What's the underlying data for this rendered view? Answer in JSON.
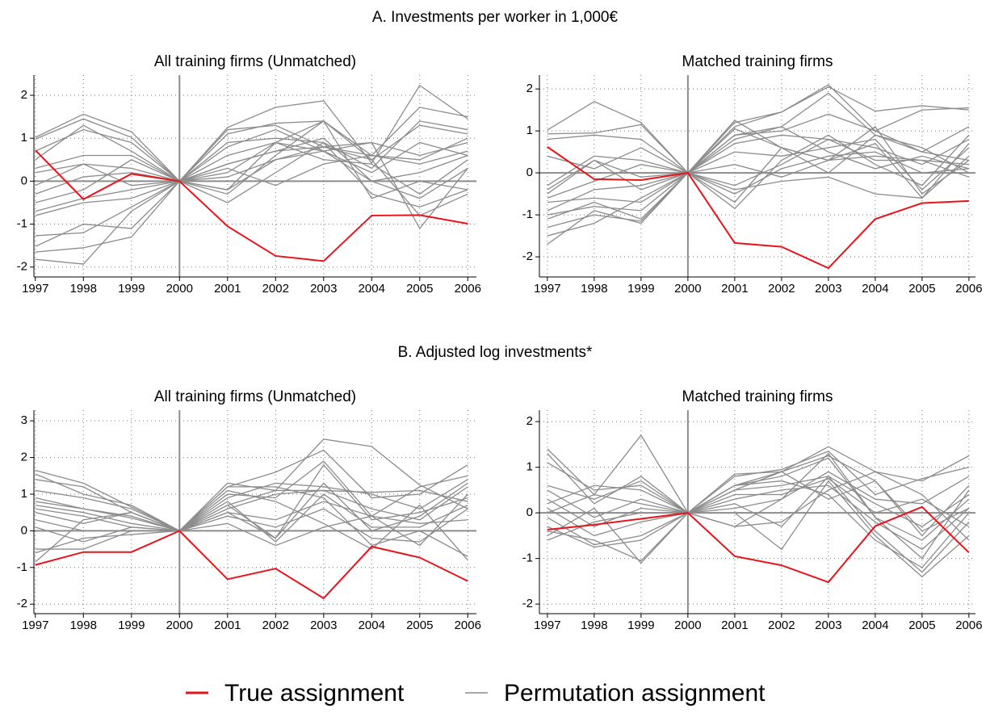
{
  "sections": [
    {
      "title": "A. Investments per worker in 1,000€"
    },
    {
      "title": "B. Adjusted log investments*"
    }
  ],
  "legend": [
    {
      "name": "True assignment",
      "color": "#e8141c"
    },
    {
      "name": "Permutation assignment",
      "color": "#8c8c8c"
    }
  ],
  "chart_data": [
    {
      "type": "line",
      "title": "All training firms (Unmatched)",
      "x": [
        1997,
        1998,
        1999,
        2000,
        2001,
        2002,
        2003,
        2004,
        2005,
        2006
      ],
      "xlim": [
        1996.97,
        2006.18
      ],
      "ylim": [
        -2.23,
        2.47
      ],
      "yticks": [
        -2,
        -1,
        0,
        1,
        2
      ],
      "grid": true,
      "series": [
        {
          "color": "#e8141c",
          "values": [
            0.72,
            -0.42,
            0.17,
            0,
            -1.05,
            -1.74,
            -1.86,
            -0.8,
            -0.79,
            -0.99
          ]
        },
        {
          "color": "#8c8c8c",
          "values": [
            1.02,
            1.56,
            1.15,
            0,
            1.25,
            1.72,
            1.87,
            0.42,
            2.23,
            1.45
          ]
        },
        {
          "color": "#8c8c8c",
          "values": [
            0.98,
            1.45,
            1.02,
            0,
            1.1,
            1.35,
            1.4,
            0.6,
            1.72,
            1.5
          ]
        },
        {
          "color": "#8c8c8c",
          "values": [
            0.5,
            1.3,
            0.7,
            0,
            0.9,
            1.0,
            0.9,
            0.3,
            1.4,
            1.2
          ]
        },
        {
          "color": "#8c8c8c",
          "values": [
            0.3,
            0.6,
            0.6,
            0,
            0.6,
            0.9,
            1.4,
            0.5,
            1.3,
            1.1
          ]
        },
        {
          "color": "#8c8c8c",
          "values": [
            0.2,
            0.4,
            0.3,
            0,
            0.4,
            0.7,
            0.8,
            0.9,
            0.6,
            0.9
          ]
        },
        {
          "color": "#8c8c8c",
          "values": [
            -0.1,
            0.4,
            -0.1,
            0,
            0.2,
            0.9,
            0.7,
            0.2,
            0.9,
            0.6
          ]
        },
        {
          "color": "#8c8c8c",
          "values": [
            -0.3,
            0.1,
            0.2,
            0,
            0.1,
            0.5,
            0.8,
            0.6,
            0.4,
            0.7
          ]
        },
        {
          "color": "#8c8c8c",
          "values": [
            -0.5,
            -0.2,
            0.5,
            0,
            -0.2,
            0.9,
            0.5,
            0.4,
            -0.3,
            0.5
          ]
        },
        {
          "color": "#8c8c8c",
          "values": [
            -0.7,
            -0.4,
            -0.2,
            0,
            0.4,
            0.7,
            1.0,
            0.0,
            0.2,
            0.6
          ]
        },
        {
          "color": "#8c8c8c",
          "values": [
            -0.8,
            -0.5,
            -0.4,
            0,
            -0.5,
            0.2,
            0.9,
            -0.3,
            -0.6,
            -0.2
          ]
        },
        {
          "color": "#8c8c8c",
          "values": [
            -1.27,
            -1.2,
            -0.6,
            0,
            0.8,
            1.2,
            0.7,
            0.9,
            -1.1,
            0.3
          ]
        },
        {
          "color": "#8c8c8c",
          "values": [
            -1.52,
            -1.0,
            -1.1,
            0,
            1.2,
            1.3,
            0.8,
            0.5,
            -0.8,
            -0.3
          ]
        },
        {
          "color": "#8c8c8c",
          "values": [
            -1.65,
            -1.55,
            -1.3,
            0,
            0.3,
            -0.1,
            0.4,
            0.6,
            0.5,
            1.0
          ]
        },
        {
          "color": "#8c8c8c",
          "values": [
            -1.82,
            -1.93,
            -0.7,
            0,
            -0.3,
            0.6,
            1.4,
            -0.4,
            0.0,
            -0.2
          ]
        },
        {
          "color": "#8c8c8c",
          "values": [
            0.7,
            1.2,
            0.9,
            0,
            -0.2,
            0.5,
            0.7,
            0.0,
            -0.4,
            0.3
          ]
        }
      ]
    },
    {
      "type": "line",
      "title": "Matched training firms",
      "x": [
        1997,
        1998,
        1999,
        2000,
        2001,
        2002,
        2003,
        2004,
        2005,
        2006
      ],
      "xlim": [
        1996.83,
        2006.14
      ],
      "ylim": [
        -2.48,
        2.33
      ],
      "yticks": [
        -2,
        -1,
        0,
        1,
        2
      ],
      "grid": true,
      "series": [
        {
          "color": "#e8141c",
          "values": [
            0.62,
            -0.15,
            -0.17,
            0,
            -1.67,
            -1.76,
            -2.27,
            -1.1,
            -0.72,
            -0.67
          ]
        },
        {
          "color": "#8c8c8c",
          "values": [
            1.02,
            1.7,
            1.2,
            0,
            1.2,
            1.45,
            2.05,
            1.47,
            1.6,
            1.5
          ]
        },
        {
          "color": "#8c8c8c",
          "values": [
            0.93,
            0.95,
            1.15,
            0,
            1.1,
            1.45,
            2.1,
            1.0,
            1.5,
            1.55
          ]
        },
        {
          "color": "#8c8c8c",
          "values": [
            0.8,
            0.9,
            0.8,
            0,
            0.9,
            1.1,
            1.9,
            0.9,
            0.5,
            1.1
          ]
        },
        {
          "color": "#8c8c8c",
          "values": [
            -0.3,
            0.4,
            0.3,
            0,
            0.9,
            1.0,
            1.4,
            1.0,
            0.5,
            0.3
          ]
        },
        {
          "color": "#8c8c8c",
          "values": [
            -0.4,
            0.3,
            -0.1,
            0,
            0.7,
            0.9,
            0.8,
            0.3,
            0.3,
            0.2
          ]
        },
        {
          "color": "#8c8c8c",
          "values": [
            -0.6,
            -0.2,
            0.2,
            0,
            0.5,
            0.4,
            0.6,
            0.8,
            -0.4,
            0.6
          ]
        },
        {
          "color": "#8c8c8c",
          "values": [
            -0.7,
            -0.6,
            -0.7,
            0,
            -0.3,
            0.2,
            0.8,
            0.6,
            0.2,
            0.8
          ]
        },
        {
          "color": "#8c8c8c",
          "values": [
            -0.9,
            -0.4,
            -0.3,
            0,
            -0.5,
            0.1,
            0.4,
            0.5,
            0.0,
            0.1
          ]
        },
        {
          "color": "#8c8c8c",
          "values": [
            -1.0,
            -0.8,
            -0.9,
            0,
            -0.7,
            0.6,
            0.3,
            0.7,
            -0.6,
            0.7
          ]
        },
        {
          "color": "#8c8c8c",
          "values": [
            -1.1,
            -0.7,
            -1.1,
            0,
            -0.4,
            -0.2,
            -0.1,
            -0.5,
            -0.6,
            0.4
          ]
        },
        {
          "color": "#8c8c8c",
          "values": [
            -1.3,
            -1.0,
            -1.15,
            0,
            -0.85,
            0.3,
            0.9,
            0.2,
            -0.3,
            0.9
          ]
        },
        {
          "color": "#8c8c8c",
          "values": [
            -1.5,
            -1.2,
            -0.6,
            0,
            1.25,
            0.6,
            0.0,
            0.9,
            0.6,
            0.0
          ]
        },
        {
          "color": "#8c8c8c",
          "values": [
            -1.7,
            -0.9,
            -1.2,
            0,
            0.8,
            1.1,
            0.5,
            0.1,
            0.4,
            0.1
          ]
        },
        {
          "color": "#8c8c8c",
          "values": [
            0.4,
            0.1,
            0.6,
            0,
            1.05,
            0.6,
            0.3,
            1.1,
            -0.5,
            0.3
          ]
        },
        {
          "color": "#8c8c8c",
          "values": [
            -0.5,
            0.3,
            -0.4,
            0,
            0.2,
            -0.1,
            0.3,
            0.4,
            0.3,
            -0.1
          ]
        }
      ]
    },
    {
      "type": "line",
      "title": "All training firms (Unmatched)",
      "x": [
        1997,
        1998,
        1999,
        2000,
        2001,
        2002,
        2003,
        2004,
        2005,
        2006
      ],
      "xlim": [
        1996.97,
        2006.18
      ],
      "ylim": [
        -2.26,
        3.29
      ],
      "yticks": [
        -2,
        -1,
        0,
        1,
        2,
        3
      ],
      "grid": true,
      "series": [
        {
          "color": "#e8141c",
          "values": [
            -0.93,
            -0.58,
            -0.58,
            0,
            -1.32,
            -1.03,
            -1.84,
            -0.43,
            -0.73,
            -1.37
          ]
        },
        {
          "color": "#8c8c8c",
          "values": [
            1.65,
            1.3,
            0.65,
            0,
            1.3,
            1.1,
            2.5,
            2.3,
            1.25,
            0.6
          ]
        },
        {
          "color": "#8c8c8c",
          "values": [
            1.55,
            1.0,
            0.7,
            0,
            1.2,
            1.6,
            2.2,
            0.9,
            1.0,
            1.8
          ]
        },
        {
          "color": "#8c8c8c",
          "values": [
            1.4,
            1.2,
            0.5,
            0,
            1.0,
            0.9,
            1.9,
            0.4,
            1.2,
            1.5
          ]
        },
        {
          "color": "#8c8c8c",
          "values": [
            1.1,
            0.9,
            0.6,
            0,
            0.9,
            1.3,
            1.2,
            1.0,
            0.6,
            1.4
          ]
        },
        {
          "color": "#8c8c8c",
          "values": [
            0.8,
            0.6,
            0.4,
            0,
            0.7,
            1.1,
            1.1,
            0.6,
            0.3,
            1.2
          ]
        },
        {
          "color": "#8c8c8c",
          "values": [
            0.7,
            0.5,
            0.2,
            0,
            0.6,
            1.0,
            1.1,
            1.05,
            1.1,
            0.8
          ]
        },
        {
          "color": "#8c8c8c",
          "values": [
            0.6,
            0.4,
            0.1,
            0,
            0.5,
            -0.2,
            1.8,
            0.3,
            0.5,
            0.9
          ]
        },
        {
          "color": "#8c8c8c",
          "values": [
            0.5,
            0.2,
            0.5,
            0,
            0.8,
            -0.3,
            1.0,
            0.1,
            0.1,
            0.7
          ]
        },
        {
          "color": "#8c8c8c",
          "values": [
            0.3,
            0.0,
            0.0,
            0,
            0.4,
            0.1,
            0.6,
            -0.2,
            -0.3,
            0.6
          ]
        },
        {
          "color": "#8c8c8c",
          "values": [
            0.1,
            -0.3,
            0.1,
            0,
            0.2,
            -0.4,
            0.1,
            0.4,
            -0.4,
            1.0
          ]
        },
        {
          "color": "#8c8c8c",
          "values": [
            -0.5,
            -0.5,
            0.0,
            0,
            1.1,
            0.8,
            0.2,
            -0.5,
            0.7,
            -0.8
          ]
        },
        {
          "color": "#8c8c8c",
          "values": [
            -0.6,
            -0.2,
            -0.1,
            0,
            0.7,
            -0.2,
            1.3,
            0.0,
            0.4,
            1.3
          ]
        },
        {
          "color": "#8c8c8c",
          "values": [
            -0.85,
            0.3,
            0.5,
            0,
            1.2,
            1.2,
            0.9,
            -0.4,
            0.0,
            -0.7
          ]
        },
        {
          "color": "#8c8c8c",
          "values": [
            0.9,
            0.6,
            0.35,
            0,
            0.5,
            0.3,
            0.8,
            0.4,
            0.2,
            0.3
          ]
        }
      ]
    },
    {
      "type": "line",
      "title": "Matched training firms",
      "x": [
        1997,
        1998,
        1999,
        2000,
        2001,
        2002,
        2003,
        2004,
        2005,
        2006
      ],
      "xlim": [
        1996.83,
        2006.14
      ],
      "ylim": [
        -2.21,
        2.25
      ],
      "yticks": [
        -2,
        -1,
        0,
        1,
        2
      ],
      "grid": true,
      "series": [
        {
          "color": "#e8141c",
          "values": [
            -0.37,
            -0.26,
            -0.13,
            0,
            -0.95,
            -1.15,
            -1.52,
            -0.29,
            0.13,
            -0.87
          ]
        },
        {
          "color": "#8c8c8c",
          "values": [
            1.4,
            0.4,
            1.7,
            0,
            0.85,
            0.9,
            1.45,
            0.9,
            0.7,
            1.25
          ]
        },
        {
          "color": "#8c8c8c",
          "values": [
            1.3,
            0.2,
            0.8,
            0,
            0.8,
            0.95,
            1.35,
            0.4,
            0.75,
            1.0
          ]
        },
        {
          "color": "#8c8c8c",
          "values": [
            1.1,
            0.5,
            0.6,
            0,
            0.6,
            0.9,
            1.25,
            0.7,
            -0.5,
            0.6
          ]
        },
        {
          "color": "#8c8c8c",
          "values": [
            0.6,
            0.3,
            0.7,
            0,
            0.6,
            0.8,
            1.2,
            -0.1,
            -0.6,
            0.3
          ]
        },
        {
          "color": "#8c8c8c",
          "values": [
            0.5,
            -0.1,
            0.3,
            0,
            0.5,
            0.6,
            0.8,
            0.2,
            -0.3,
            0.4
          ]
        },
        {
          "color": "#8c8c8c",
          "values": [
            0.3,
            -0.3,
            0.1,
            0,
            0.4,
            0.4,
            0.75,
            0.0,
            0.3,
            -0.3
          ]
        },
        {
          "color": "#8c8c8c",
          "values": [
            0.1,
            -0.5,
            -0.2,
            0,
            0.3,
            0.5,
            0.6,
            -0.2,
            -0.8,
            0.1
          ]
        },
        {
          "color": "#8c8c8c",
          "values": [
            -0.1,
            -0.7,
            -0.5,
            0,
            0.2,
            -0.3,
            0.8,
            -0.4,
            -1.3,
            -0.2
          ]
        },
        {
          "color": "#8c8c8c",
          "values": [
            -0.3,
            -0.75,
            -0.6,
            0,
            0.0,
            -0.8,
            0.7,
            -0.5,
            -1.4,
            -0.5
          ]
        },
        {
          "color": "#8c8c8c",
          "values": [
            -0.4,
            -0.6,
            -1.05,
            0,
            -0.3,
            0.3,
            1.3,
            -0.1,
            -1.0,
            0.5
          ]
        },
        {
          "color": "#8c8c8c",
          "values": [
            -0.5,
            0.1,
            -1.1,
            0,
            0.6,
            0.7,
            0.4,
            -0.6,
            -1.2,
            0.0
          ]
        },
        {
          "color": "#8c8c8c",
          "values": [
            -0.6,
            -0.2,
            0.0,
            0,
            0.5,
            0.9,
            0.3,
            0.7,
            -0.4,
            0.1
          ]
        },
        {
          "color": "#8c8c8c",
          "values": [
            0.0,
            0.4,
            0.2,
            0,
            -0.3,
            -0.2,
            0.5,
            0.9,
            0.4,
            -0.6
          ]
        },
        {
          "color": "#8c8c8c",
          "values": [
            0.2,
            0.6,
            0.5,
            0,
            0.1,
            0.3,
            0.9,
            0.3,
            0.2,
            0.8
          ]
        }
      ]
    }
  ]
}
